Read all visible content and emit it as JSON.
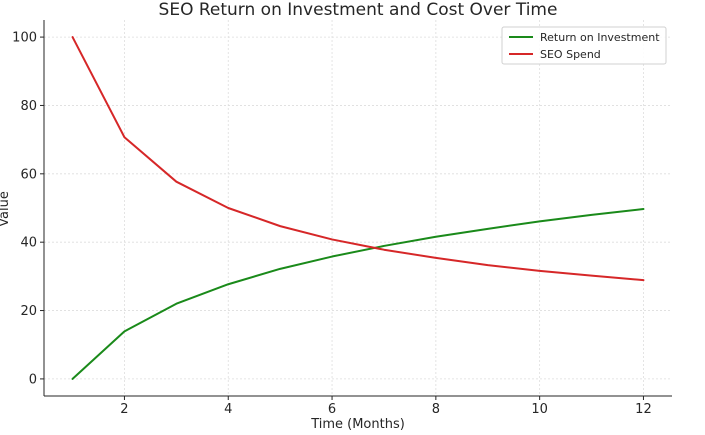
{
  "chart_data": {
    "type": "line",
    "title": "SEO Return on Investment and Cost Over Time",
    "xlabel": "Time (Months)",
    "ylabel": "Value",
    "x": [
      1,
      2,
      3,
      4,
      5,
      6,
      7,
      8,
      9,
      10,
      11,
      12
    ],
    "xlim": [
      0.45,
      12.55
    ],
    "ylim": [
      -5,
      105
    ],
    "xticks": [
      2,
      4,
      6,
      8,
      10,
      12
    ],
    "yticks": [
      0,
      20,
      40,
      60,
      80,
      100
    ],
    "grid": true,
    "legend_position": "top-right",
    "series": [
      {
        "name": "Return on Investment",
        "color": "#1a8a1a",
        "values": [
          0,
          13.9,
          22.0,
          27.7,
          32.2,
          35.8,
          38.9,
          41.6,
          43.9,
          46.1,
          48.0,
          49.7
        ]
      },
      {
        "name": "SEO Spend",
        "color": "#d62728",
        "values": [
          100,
          70.7,
          57.7,
          50.0,
          44.7,
          40.8,
          37.8,
          35.4,
          33.3,
          31.6,
          30.2,
          28.9
        ]
      }
    ]
  }
}
